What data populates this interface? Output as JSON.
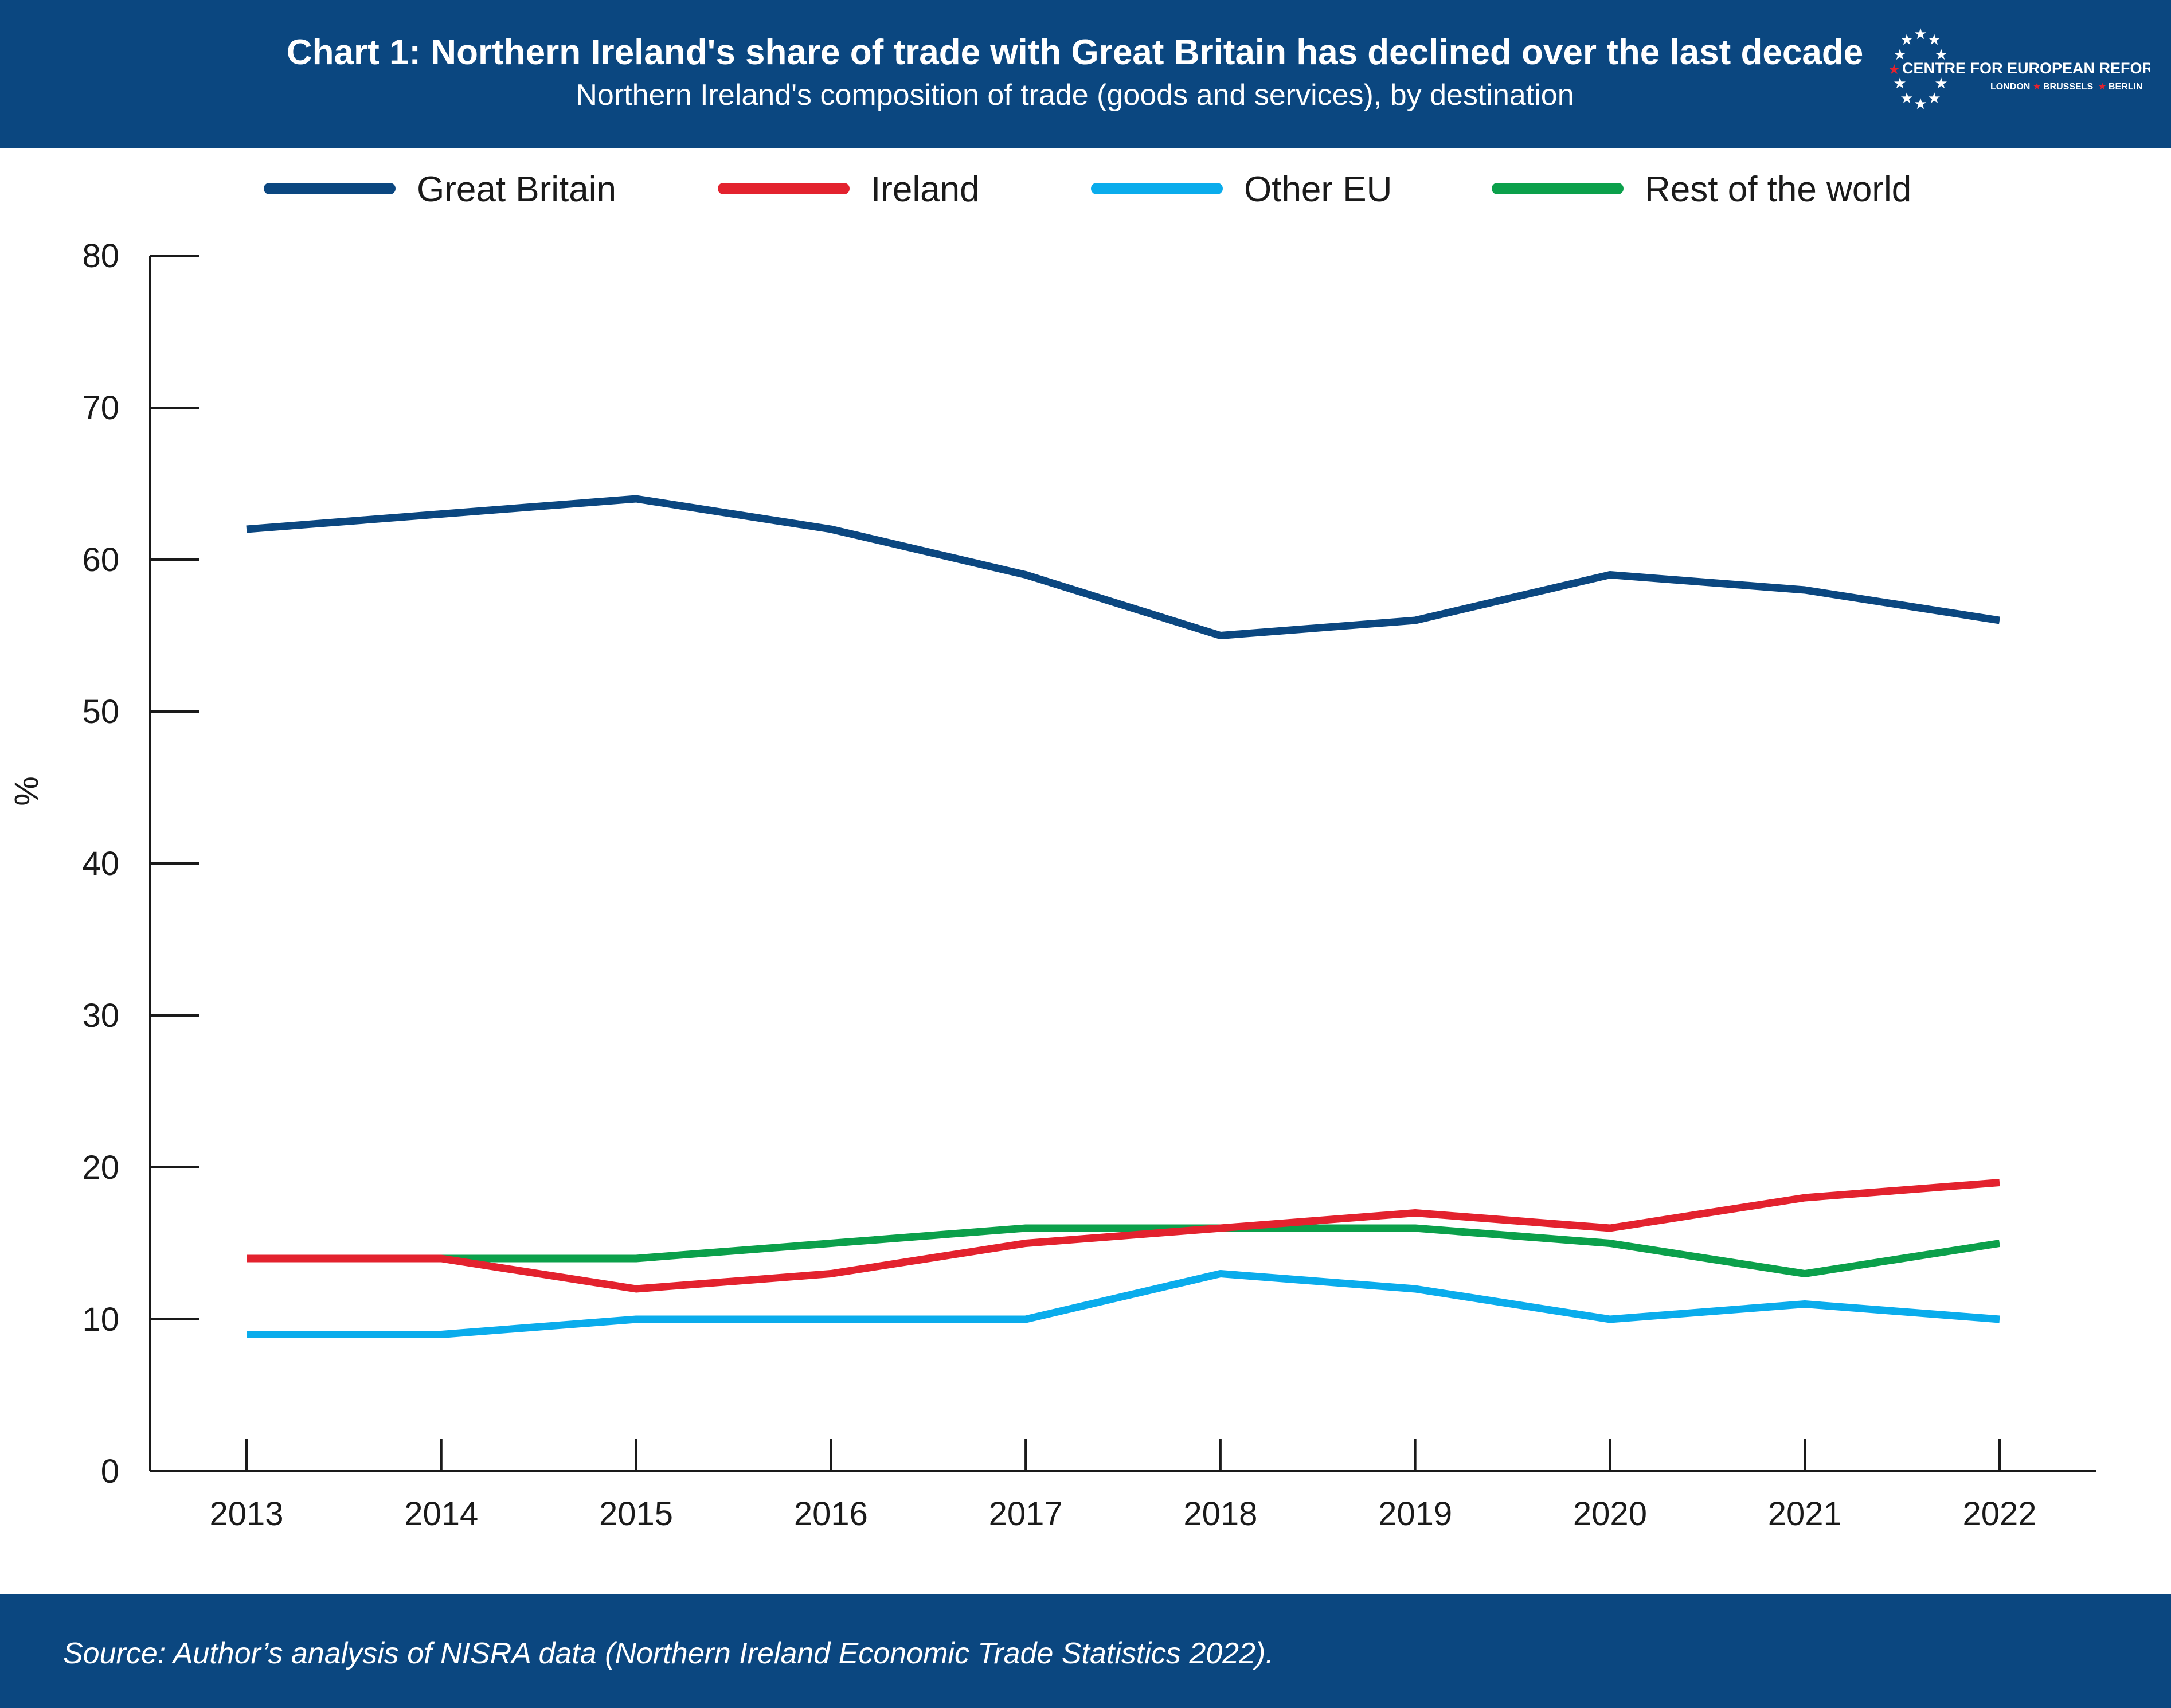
{
  "header": {
    "title": "Chart 1: Northern Ireland's share of trade with Great Britain has declined over the last decade",
    "subtitle": "Northern Ireland's composition of trade (goods and services), by destination"
  },
  "logo": {
    "name": "CENTRE FOR EUROPEAN REFORM",
    "cities": [
      "LONDON",
      "BRUSSELS",
      "BERLIN"
    ]
  },
  "footer": {
    "source": "Source: Author’s analysis of NISRA data (Northern Ireland Economic Trade Statistics 2022)."
  },
  "colors": {
    "header_bg": "#0b4780",
    "great_britain": "#0b4780",
    "ireland": "#e3222e",
    "other_eu": "#0aacec",
    "rest_of_world": "#0ba04b"
  },
  "chart_data": {
    "type": "line",
    "title": "Chart 1: Northern Ireland's share of trade with Great Britain has declined over the last decade",
    "subtitle": "Northern Ireland's composition of trade (goods and services), by destination",
    "xlabel": "",
    "ylabel": "%",
    "x": [
      "2013",
      "2014",
      "2015",
      "2016",
      "2017",
      "2018",
      "2019",
      "2020",
      "2021",
      "2022"
    ],
    "ylim": [
      0,
      80
    ],
    "yticks": [
      0,
      10,
      20,
      30,
      40,
      50,
      60,
      70,
      80
    ],
    "grid": false,
    "legend_position": "top",
    "series": [
      {
        "name": "Great Britain",
        "color": "#0b4780",
        "values": [
          62,
          63,
          64,
          62,
          59,
          55,
          56,
          59,
          58,
          56
        ]
      },
      {
        "name": "Ireland",
        "color": "#e3222e",
        "values": [
          14,
          14,
          12,
          13,
          15,
          16,
          17,
          16,
          18,
          19
        ]
      },
      {
        "name": "Other EU",
        "color": "#0aacec",
        "values": [
          9,
          9,
          10,
          10,
          10,
          13,
          12,
          10,
          11,
          10
        ]
      },
      {
        "name": "Rest of the world",
        "color": "#0ba04b",
        "values": [
          14,
          14,
          14,
          15,
          16,
          16,
          16,
          15,
          13,
          15
        ]
      }
    ]
  }
}
